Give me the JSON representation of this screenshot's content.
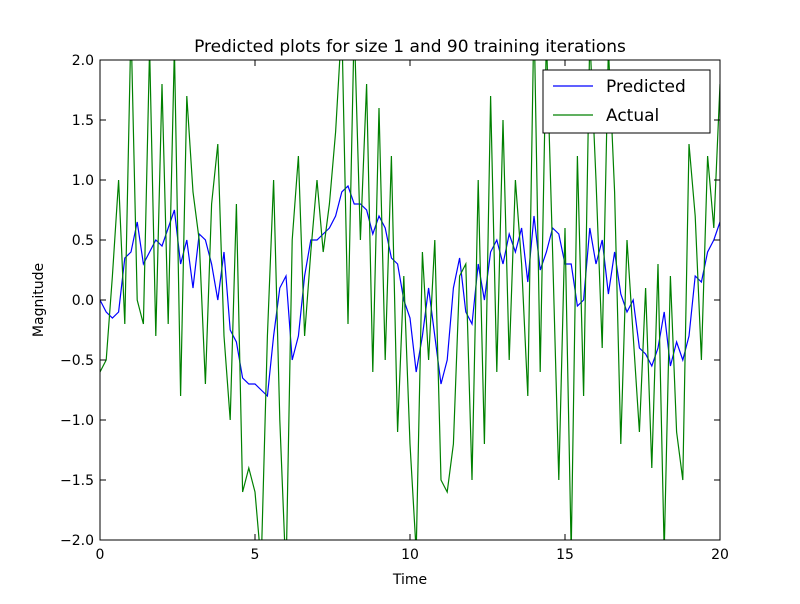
{
  "chart_data": {
    "type": "line",
    "title": "Predicted plots for size 1 and 90 training iterations",
    "x_label": "Time",
    "y_label": "Magnitude",
    "xlim": [
      0,
      20
    ],
    "ylim": [
      -2,
      2
    ],
    "xticks": [
      0,
      5,
      10,
      15,
      20
    ],
    "yticks": [
      {
        "value": -2,
        "label": "−2.0"
      },
      {
        "value": -1.5,
        "label": "−1.5"
      },
      {
        "value": -1,
        "label": "−1.0"
      },
      {
        "value": -0.5,
        "label": "−0.5"
      },
      {
        "value": 0,
        "label": "0.0"
      },
      {
        "value": 0.5,
        "label": "0.5"
      },
      {
        "value": 1,
        "label": "1.0"
      },
      {
        "value": 1.5,
        "label": "1.5"
      },
      {
        "value": 2,
        "label": "2.0"
      }
    ],
    "legend": "upper right",
    "x": [
      0,
      0.2,
      0.4,
      0.6,
      0.8,
      1,
      1.2,
      1.4,
      1.6,
      1.8,
      2,
      2.2,
      2.4,
      2.6,
      2.8,
      3,
      3.2,
      3.4,
      3.6,
      3.8,
      4,
      4.2,
      4.4,
      4.6,
      4.8,
      5,
      5.2,
      5.4,
      5.6,
      5.8,
      6,
      6.2,
      6.4,
      6.6,
      6.8,
      7,
      7.2,
      7.4,
      7.6,
      7.8,
      8,
      8.2,
      8.4,
      8.6,
      8.8,
      9,
      9.2,
      9.4,
      9.6,
      9.8,
      10,
      10.2,
      10.4,
      10.6,
      10.8,
      11,
      11.2,
      11.4,
      11.6,
      11.8,
      12,
      12.2,
      12.4,
      12.6,
      12.8,
      13,
      13.2,
      13.4,
      13.6,
      13.8,
      14,
      14.2,
      14.4,
      14.6,
      14.8,
      15,
      15.2,
      15.4,
      15.6,
      15.8,
      16,
      16.2,
      16.4,
      16.6,
      16.8,
      17,
      17.2,
      17.4,
      17.6,
      17.8,
      18,
      18.2,
      18.4,
      18.6,
      18.8,
      19,
      19.2,
      19.4,
      19.6,
      19.8,
      20
    ],
    "series": [
      {
        "name": "Predicted",
        "color": "#0000ff",
        "values": [
          0,
          -0.1,
          -0.15,
          -0.1,
          0.35,
          0.4,
          0.65,
          0.3,
          0.4,
          0.5,
          0.45,
          0.6,
          0.75,
          0.3,
          0.5,
          0.1,
          0.55,
          0.5,
          0.3,
          0,
          0.4,
          -0.25,
          -0.35,
          -0.65,
          -0.7,
          -0.7,
          -0.75,
          -0.8,
          -0.3,
          0.1,
          0.2,
          -0.5,
          -0.3,
          0.2,
          0.5,
          0.5,
          0.55,
          0.6,
          0.7,
          0.9,
          0.95,
          0.8,
          0.8,
          0.75,
          0.55,
          0.7,
          0.6,
          0.35,
          0.3,
          0,
          -0.15,
          -0.6,
          -0.3,
          0.1,
          -0.3,
          -0.7,
          -0.5,
          0.1,
          0.35,
          -0.1,
          -0.2,
          0.3,
          0,
          0.4,
          0.5,
          0.3,
          0.55,
          0.4,
          0.6,
          0.15,
          0.7,
          0.25,
          0.4,
          0.6,
          0.55,
          0.3,
          0.3,
          -0.05,
          0,
          0.6,
          0.3,
          0.5,
          0.05,
          0.4,
          0.05,
          -0.1,
          0,
          -0.4,
          -0.45,
          -0.55,
          -0.4,
          -0.1,
          -0.55,
          -0.35,
          -0.5,
          -0.3,
          0.2,
          0.15,
          0.4,
          0.5,
          0.65
        ]
      },
      {
        "name": "Actual",
        "color": "#008000",
        "values": [
          -0.6,
          -0.5,
          0.2,
          1,
          -0.2,
          2.3,
          0,
          -0.2,
          2.1,
          -0.3,
          1.8,
          -0.2,
          2.1,
          -0.8,
          1.7,
          0.9,
          0.5,
          -0.7,
          0.8,
          1.3,
          -0.3,
          -1,
          0.8,
          -1.6,
          -1.4,
          -1.6,
          -2.2,
          -0.3,
          1,
          -1,
          -2.3,
          0.5,
          1.2,
          -0.3,
          0.4,
          1,
          0.4,
          0.8,
          1.4,
          2.3,
          -0.2,
          2.3,
          0.5,
          1.8,
          -0.6,
          1.6,
          -0.5,
          1.2,
          -1.1,
          0.2,
          -1.2,
          -2.1,
          0.4,
          -0.5,
          0.5,
          -1.5,
          -1.6,
          -1.2,
          0.2,
          0.3,
          -1.5,
          1,
          -1.2,
          1.7,
          -0.6,
          1.5,
          -0.5,
          1,
          0.3,
          -0.8,
          2.4,
          -0.6,
          2.2,
          0.4,
          -1.5,
          0.6,
          -2.1,
          1.2,
          -0.8,
          2.2,
          1,
          -0.4,
          2.1,
          0.9,
          -1.2,
          0.5,
          -0.3,
          -1.1,
          0.1,
          -1.4,
          0.3,
          -2.1,
          0.2,
          -1.1,
          -1.5,
          1.3,
          0.7,
          -0.5,
          1.2,
          0.6,
          1.8
        ]
      }
    ]
  }
}
